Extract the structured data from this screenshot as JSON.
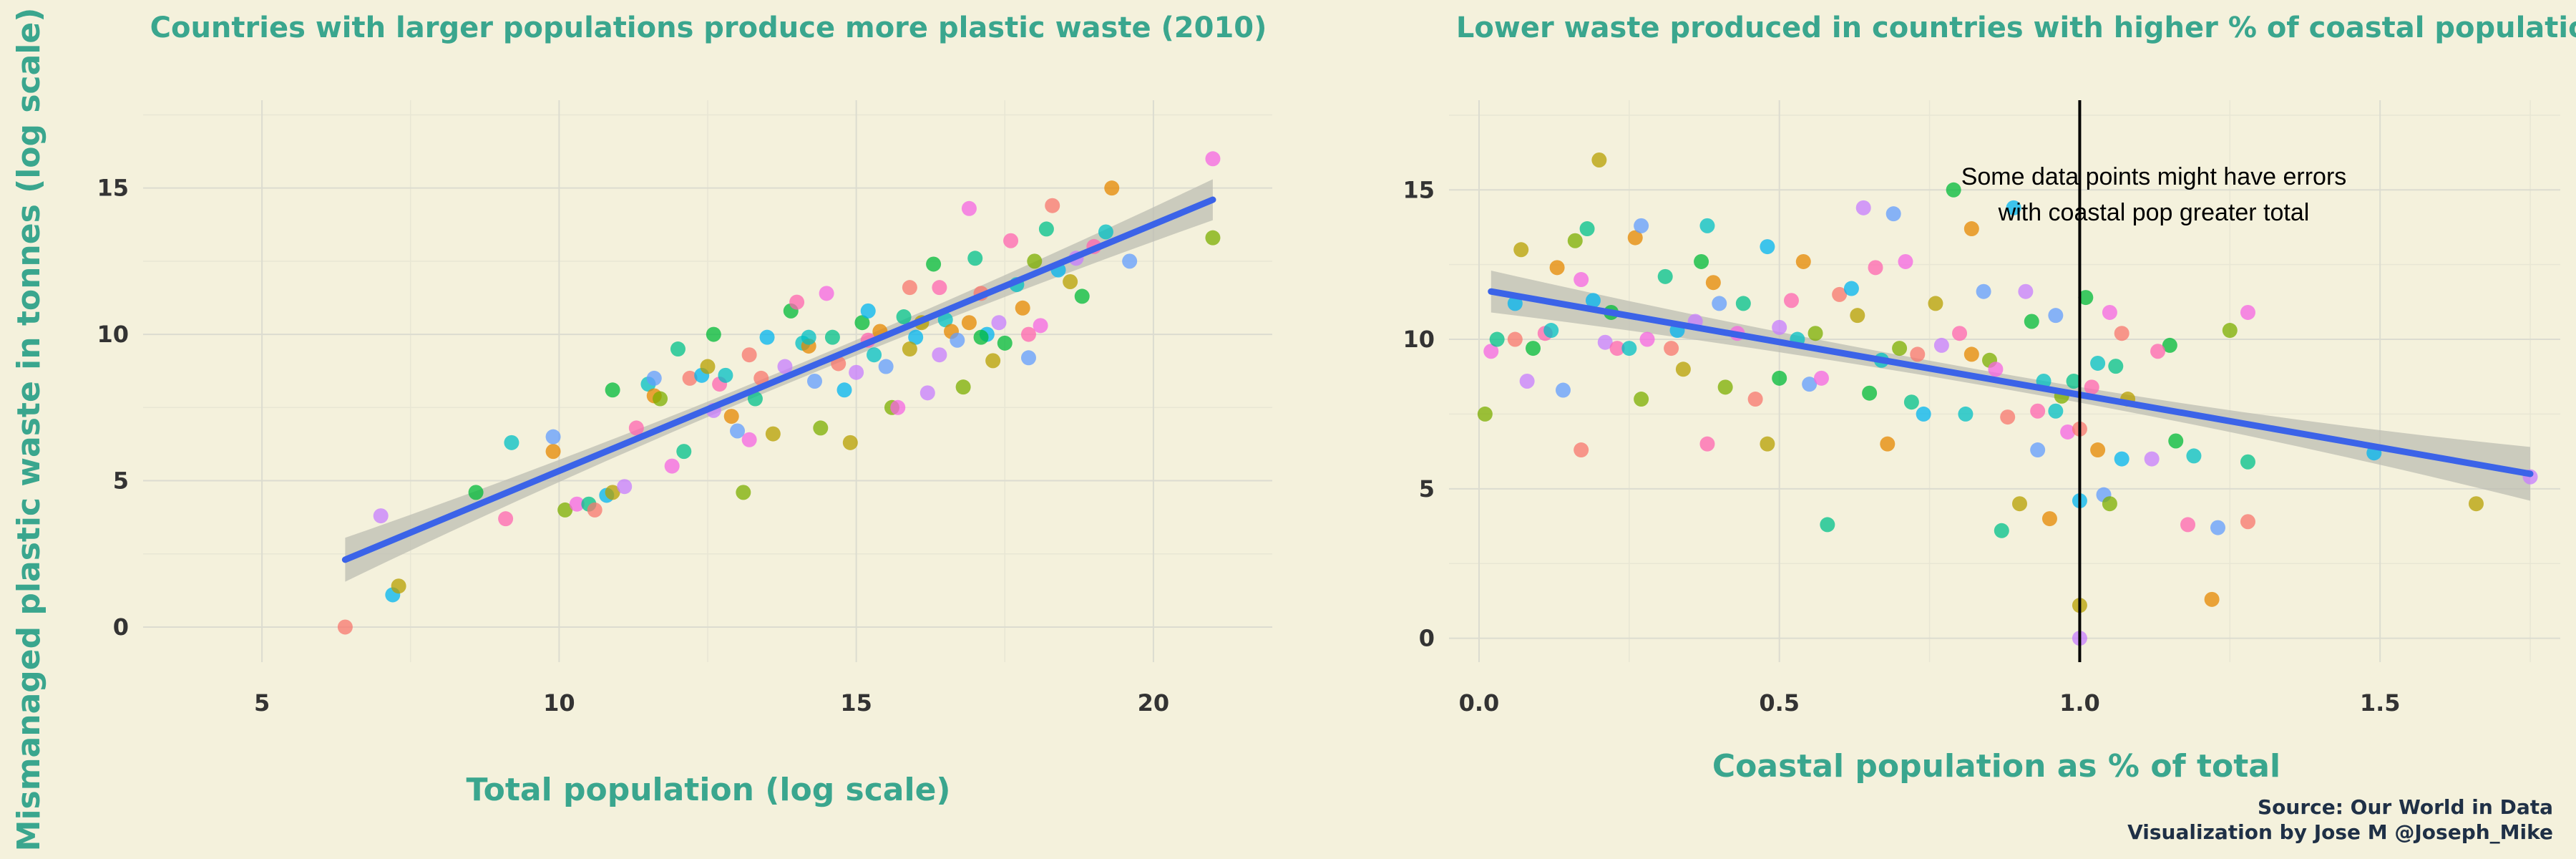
{
  "caption": {
    "source": "Source: Our World in Data",
    "credit": "Visualization by Jose M @Joseph_Mike"
  },
  "shared_ylabel": "Mismanaged plastic waste in tonnes (log scale)",
  "colors": {
    "background": "#f4f1dc",
    "accent": "#3aa68e",
    "trend_line": "#3b63e8",
    "confidence_band": "#bdbdb3",
    "point_palette": [
      "#f8766d",
      "#e58700",
      "#b79f00",
      "#7cae00",
      "#00ba38",
      "#00c08b",
      "#00bfc4",
      "#00b4f0",
      "#619cff",
      "#c77cff",
      "#f564e3",
      "#ff64b0"
    ]
  },
  "chart_data": [
    {
      "type": "scatter",
      "title": "Countries with larger populations produce more plastic waste (2010)",
      "xlabel": "Total population (log scale)",
      "ylabel": "Mismanaged plastic waste in tonnes (log scale)",
      "xlim": [
        3.0,
        22.0
      ],
      "ylim": [
        -1.2,
        18.0
      ],
      "xticks": [
        5,
        10,
        15,
        20
      ],
      "yticks": [
        0,
        5,
        10,
        15
      ],
      "grid": true,
      "trend": {
        "x": [
          6.4,
          21.0
        ],
        "y": [
          2.3,
          14.6
        ],
        "band_halfwidth_start": 0.75,
        "band_halfwidth_mid": 0.25,
        "band_halfwidth_end": 0.7
      },
      "points": [
        [
          6.4,
          0.0
        ],
        [
          7.2,
          1.1
        ],
        [
          7.3,
          1.4
        ],
        [
          7.0,
          3.8
        ],
        [
          8.6,
          4.6
        ],
        [
          9.1,
          3.7
        ],
        [
          9.2,
          6.3
        ],
        [
          9.9,
          6.0
        ],
        [
          9.9,
          6.5
        ],
        [
          10.1,
          4.0
        ],
        [
          10.3,
          4.2
        ],
        [
          10.5,
          4.2
        ],
        [
          10.6,
          4.0
        ],
        [
          10.8,
          4.5
        ],
        [
          10.9,
          4.6
        ],
        [
          11.1,
          4.8
        ],
        [
          10.9,
          8.1
        ],
        [
          11.3,
          6.8
        ],
        [
          11.5,
          8.3
        ],
        [
          11.6,
          7.9
        ],
        [
          11.6,
          8.5
        ],
        [
          11.7,
          7.8
        ],
        [
          11.9,
          5.5
        ],
        [
          12.1,
          6.0
        ],
        [
          12.2,
          8.5
        ],
        [
          12.4,
          8.6
        ],
        [
          12.5,
          8.9
        ],
        [
          12.6,
          7.4
        ],
        [
          12.6,
          10.0
        ],
        [
          12.7,
          8.3
        ],
        [
          12.8,
          8.6
        ],
        [
          12.9,
          7.2
        ],
        [
          13.0,
          6.7
        ],
        [
          13.1,
          4.6
        ],
        [
          13.2,
          6.4
        ],
        [
          13.3,
          7.8
        ],
        [
          13.4,
          8.5
        ],
        [
          13.5,
          9.9
        ],
        [
          13.6,
          6.6
        ],
        [
          13.8,
          8.9
        ],
        [
          13.9,
          10.8
        ],
        [
          14.0,
          11.1
        ],
        [
          14.1,
          9.7
        ],
        [
          14.2,
          9.6
        ],
        [
          14.3,
          8.4
        ],
        [
          14.4,
          6.8
        ],
        [
          14.5,
          11.4
        ],
        [
          14.6,
          9.9
        ],
        [
          14.7,
          9.0
        ],
        [
          14.8,
          8.1
        ],
        [
          14.9,
          6.3
        ],
        [
          15.0,
          8.7
        ],
        [
          15.1,
          10.4
        ],
        [
          15.2,
          9.8
        ],
        [
          15.3,
          9.3
        ],
        [
          15.4,
          10.1
        ],
        [
          15.5,
          8.9
        ],
        [
          15.6,
          7.5
        ],
        [
          15.7,
          7.5
        ],
        [
          15.8,
          10.6
        ],
        [
          15.9,
          11.6
        ],
        [
          16.0,
          9.9
        ],
        [
          16.1,
          10.4
        ],
        [
          16.2,
          8.0
        ],
        [
          16.3,
          12.4
        ],
        [
          16.4,
          11.6
        ],
        [
          16.5,
          10.5
        ],
        [
          16.6,
          10.1
        ],
        [
          16.7,
          9.8
        ],
        [
          16.8,
          8.2
        ],
        [
          16.9,
          14.3
        ],
        [
          17.0,
          12.6
        ],
        [
          17.1,
          11.4
        ],
        [
          17.2,
          10.0
        ],
        [
          17.3,
          9.1
        ],
        [
          17.4,
          10.4
        ],
        [
          17.5,
          9.7
        ],
        [
          17.6,
          13.2
        ],
        [
          17.7,
          11.7
        ],
        [
          17.8,
          10.9
        ],
        [
          17.9,
          9.2
        ],
        [
          18.0,
          12.5
        ],
        [
          18.1,
          10.3
        ],
        [
          18.2,
          13.6
        ],
        [
          18.3,
          14.4
        ],
        [
          18.4,
          12.2
        ],
        [
          18.6,
          11.8
        ],
        [
          18.7,
          12.6
        ],
        [
          18.8,
          11.3
        ],
        [
          19.0,
          13.0
        ],
        [
          19.2,
          13.5
        ],
        [
          19.3,
          15.0
        ],
        [
          19.6,
          12.5
        ],
        [
          21.0,
          13.3
        ],
        [
          21.0,
          16.0
        ],
        [
          12.0,
          9.5
        ],
        [
          13.2,
          9.3
        ],
        [
          15.2,
          10.8
        ],
        [
          15.9,
          9.5
        ],
        [
          16.4,
          9.3
        ],
        [
          17.1,
          9.9
        ],
        [
          17.9,
          10.0
        ],
        [
          14.2,
          9.9
        ],
        [
          16.9,
          10.4
        ]
      ]
    },
    {
      "type": "scatter",
      "title": "Lower waste produced in countries with higher % of coastal population",
      "xlabel": "Coastal population as % of total",
      "ylabel": "",
      "xlim": [
        -0.05,
        1.8
      ],
      "ylim": [
        -0.8,
        18.0
      ],
      "xticks": [
        0.0,
        0.5,
        1.0,
        1.5
      ],
      "xtick_labels": [
        "0.0",
        "0.5",
        "1.0",
        "1.5"
      ],
      "yticks": [
        0,
        5,
        10,
        15
      ],
      "grid": true,
      "vline_x": 1.0,
      "annotation": [
        "Some data points might have errors",
        "with coastal pop greater total"
      ],
      "trend": {
        "x": [
          0.02,
          1.75
        ],
        "y": [
          11.6,
          5.5
        ],
        "band_halfwidth_start": 0.7,
        "band_halfwidth_mid": 0.25,
        "band_halfwidth_end": 0.9
      },
      "points": [
        [
          0.01,
          7.5
        ],
        [
          0.02,
          9.6
        ],
        [
          0.03,
          10.0
        ],
        [
          0.06,
          10.0
        ],
        [
          0.06,
          11.2
        ],
        [
          0.07,
          13.0
        ],
        [
          0.08,
          8.6
        ],
        [
          0.09,
          9.7
        ],
        [
          0.11,
          10.2
        ],
        [
          0.12,
          10.3
        ],
        [
          0.13,
          12.4
        ],
        [
          0.14,
          8.3
        ],
        [
          0.16,
          13.3
        ],
        [
          0.17,
          12.0
        ],
        [
          0.18,
          13.7
        ],
        [
          0.17,
          6.3
        ],
        [
          0.19,
          11.3
        ],
        [
          0.2,
          16.0
        ],
        [
          0.21,
          9.9
        ],
        [
          0.22,
          10.9
        ],
        [
          0.23,
          9.7
        ],
        [
          0.25,
          9.7
        ],
        [
          0.26,
          13.4
        ],
        [
          0.27,
          13.8
        ],
        [
          0.27,
          8.0
        ],
        [
          0.28,
          10.0
        ],
        [
          0.31,
          12.1
        ],
        [
          0.32,
          9.7
        ],
        [
          0.33,
          10.3
        ],
        [
          0.34,
          9.0
        ],
        [
          0.36,
          10.6
        ],
        [
          0.37,
          12.6
        ],
        [
          0.38,
          6.5
        ],
        [
          0.38,
          13.8
        ],
        [
          0.39,
          11.9
        ],
        [
          0.4,
          11.2
        ],
        [
          0.41,
          8.4
        ],
        [
          0.43,
          10.2
        ],
        [
          0.44,
          11.2
        ],
        [
          0.46,
          8.0
        ],
        [
          0.48,
          13.1
        ],
        [
          0.48,
          6.5
        ],
        [
          0.5,
          10.4
        ],
        [
          0.5,
          8.7
        ],
        [
          0.52,
          11.3
        ],
        [
          0.53,
          10.0
        ],
        [
          0.54,
          12.6
        ],
        [
          0.55,
          8.5
        ],
        [
          0.56,
          10.2
        ],
        [
          0.57,
          8.7
        ],
        [
          0.58,
          3.8
        ],
        [
          0.6,
          11.5
        ],
        [
          0.62,
          11.7
        ],
        [
          0.63,
          10.8
        ],
        [
          0.64,
          14.4
        ],
        [
          0.65,
          8.2
        ],
        [
          0.66,
          12.4
        ],
        [
          0.67,
          9.3
        ],
        [
          0.68,
          6.5
        ],
        [
          0.69,
          14.2
        ],
        [
          0.7,
          9.7
        ],
        [
          0.71,
          12.6
        ],
        [
          0.72,
          7.9
        ],
        [
          0.73,
          9.5
        ],
        [
          0.74,
          7.5
        ],
        [
          0.76,
          11.2
        ],
        [
          0.77,
          9.8
        ],
        [
          0.79,
          15.0
        ],
        [
          0.8,
          10.2
        ],
        [
          0.81,
          7.5
        ],
        [
          0.82,
          13.7
        ],
        [
          0.84,
          11.6
        ],
        [
          0.85,
          9.3
        ],
        [
          0.86,
          9.0
        ],
        [
          0.87,
          3.6
        ],
        [
          0.88,
          7.4
        ],
        [
          0.89,
          14.4
        ],
        [
          0.9,
          4.5
        ],
        [
          0.91,
          11.6
        ],
        [
          0.92,
          10.6
        ],
        [
          0.93,
          7.6
        ],
        [
          0.94,
          8.6
        ],
        [
          0.95,
          4.0
        ],
        [
          0.96,
          10.8
        ],
        [
          0.97,
          8.1
        ],
        [
          0.98,
          6.9
        ],
        [
          0.99,
          8.6
        ],
        [
          1.0,
          7.0
        ],
        [
          1.0,
          4.6
        ],
        [
          1.0,
          1.1
        ],
        [
          1.0,
          0.0
        ],
        [
          1.01,
          11.4
        ],
        [
          1.02,
          8.4
        ],
        [
          1.03,
          9.2
        ],
        [
          1.03,
          6.3
        ],
        [
          1.04,
          4.8
        ],
        [
          1.05,
          4.5
        ],
        [
          1.05,
          10.9
        ],
        [
          1.06,
          9.1
        ],
        [
          1.07,
          10.2
        ],
        [
          1.07,
          6.0
        ],
        [
          1.08,
          8.0
        ],
        [
          1.12,
          6.0
        ],
        [
          1.16,
          6.6
        ],
        [
          1.18,
          3.8
        ],
        [
          1.19,
          6.1
        ],
        [
          1.22,
          1.3
        ],
        [
          1.23,
          3.7
        ],
        [
          1.25,
          10.3
        ],
        [
          1.28,
          10.9
        ],
        [
          1.28,
          5.9
        ],
        [
          1.28,
          3.9
        ],
        [
          1.49,
          6.2
        ],
        [
          1.66,
          4.5
        ],
        [
          1.75,
          5.4
        ],
        [
          1.15,
          9.8
        ],
        [
          1.13,
          9.6
        ],
        [
          0.96,
          7.6
        ],
        [
          0.82,
          9.5
        ],
        [
          0.93,
          6.3
        ]
      ]
    }
  ]
}
